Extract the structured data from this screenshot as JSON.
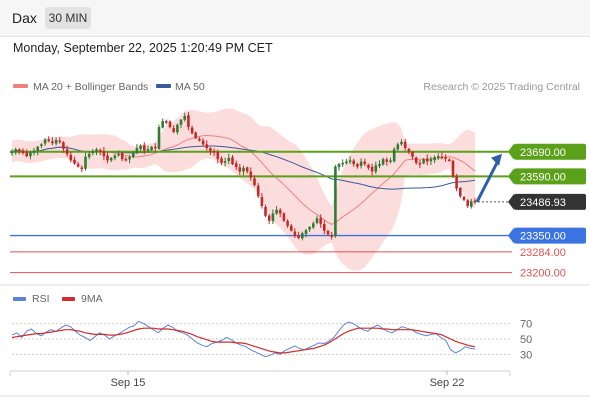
{
  "header": {
    "symbol": "Dax",
    "timeframe": "30 MIN",
    "timestamp": "Monday, September 22, 2025 1:20:49 PM CET"
  },
  "legend": {
    "ma20": "MA 20 + Bollinger Bands",
    "ma50": "MA 50",
    "rsi": "RSI",
    "rsi_ma": "9MA",
    "credit": "Research © 2025 Trading Central"
  },
  "colors": {
    "up": "#2e7d32",
    "down": "#c62828",
    "bollinger_fill": "#fbd1d1",
    "ma20": "#f08080",
    "ma50": "#3b5b9a",
    "resistance": "#5aa018",
    "support_blue": "#3b73e0",
    "support_red": "#e05050",
    "price_tag": "#333333",
    "arrow": "#2f5fa8",
    "rsi_line": "#5b84d6",
    "rsi_ma": "#d22b2b"
  },
  "chart_data": [
    {
      "type": "candlestick",
      "title": "Dax",
      "timeframe": "30 MIN",
      "x_ticks": [
        "Sep 15",
        "Sep 22"
      ],
      "y_range": [
        23170,
        23900
      ],
      "levels": [
        {
          "label": "23690.00",
          "value": 23690,
          "kind": "resistance"
        },
        {
          "label": "23590.00",
          "value": 23590,
          "kind": "resistance"
        },
        {
          "label": "23486.93",
          "value": 23486.93,
          "kind": "last-price"
        },
        {
          "label": "23350.00",
          "value": 23350,
          "kind": "support"
        },
        {
          "label": "23284.00",
          "value": 23284,
          "kind": "support"
        },
        {
          "label": "23200.00",
          "value": 23200,
          "kind": "support"
        }
      ],
      "last_price": 23486.93,
      "forecast_arrow": {
        "from": 23486.93,
        "to": 23690
      },
      "series": [
        {
          "name": "MA 20 + Bollinger Bands"
        },
        {
          "name": "MA 50"
        }
      ],
      "close_path": [
        23690,
        23700,
        23695,
        23685,
        23672,
        23688,
        23695,
        23710,
        23720,
        23740,
        23735,
        23725,
        23738,
        23730,
        23702,
        23680,
        23655,
        23642,
        23630,
        23620,
        23670,
        23682,
        23692,
        23700,
        23690,
        23672,
        23655,
        23665,
        23675,
        23682,
        23660,
        23655,
        23668,
        23685,
        23705,
        23715,
        23695,
        23700,
        23710,
        23705,
        23790,
        23815,
        23810,
        23790,
        23770,
        23800,
        23820,
        23835,
        23790,
        23765,
        23745,
        23735,
        23720,
        23705,
        23692,
        23688,
        23660,
        23645,
        23652,
        23665,
        23640,
        23628,
        23610,
        23625,
        23610,
        23585,
        23555,
        23510,
        23470,
        23430,
        23410,
        23440,
        23455,
        23440,
        23410,
        23390,
        23370,
        23350,
        23340,
        23360,
        23372,
        23385,
        23400,
        23420,
        23398,
        23370,
        23355,
        23345,
        23630,
        23640,
        23645,
        23650,
        23655,
        23640,
        23630,
        23650,
        23640,
        23625,
        23610,
        23635,
        23640,
        23660,
        23650,
        23655,
        23700,
        23720,
        23730,
        23705,
        23690,
        23670,
        23645,
        23640,
        23660,
        23650,
        23660,
        23668,
        23672,
        23670,
        23662,
        23655,
        23590,
        23540,
        23510,
        23495,
        23470,
        23490,
        23486.93
      ]
    },
    {
      "type": "line",
      "title": "RSI",
      "y_ticks": [
        70,
        50,
        30
      ],
      "series": [
        {
          "name": "RSI",
          "values": [
            55,
            58,
            52,
            60,
            63,
            57,
            54,
            59,
            62,
            60,
            64,
            68,
            66,
            60,
            55,
            52,
            48,
            53,
            58,
            55,
            50,
            54,
            57,
            61,
            65,
            67,
            73,
            70,
            66,
            62,
            58,
            64,
            68,
            65,
            60,
            58,
            55,
            50,
            45,
            42,
            40,
            44,
            46,
            48,
            52,
            49,
            45,
            42,
            40,
            36,
            33,
            30,
            27,
            29,
            32,
            30,
            35,
            38,
            41,
            38,
            36,
            39,
            42,
            45,
            44,
            47,
            52,
            60,
            68,
            72,
            70,
            66,
            62,
            60,
            65,
            68,
            64,
            60,
            58,
            62,
            66,
            64,
            62,
            58,
            56,
            54,
            56,
            57,
            52,
            48,
            36,
            32,
            35,
            40,
            38,
            37
          ]
        },
        {
          "name": "9MA",
          "values": [
            52,
            53,
            54,
            55,
            56,
            57,
            57,
            58,
            59,
            60,
            61,
            62,
            62,
            61,
            60,
            58,
            57,
            56,
            56,
            56,
            55,
            55,
            56,
            57,
            59,
            61,
            63,
            64,
            64,
            64,
            63,
            63,
            63,
            62,
            61,
            60,
            58,
            56,
            53,
            51,
            49,
            47,
            46,
            46,
            46,
            46,
            45,
            45,
            44,
            42,
            40,
            38,
            36,
            34,
            33,
            32,
            32,
            33,
            34,
            35,
            36,
            37,
            38,
            40,
            42,
            45,
            49,
            53,
            57,
            60,
            62,
            64,
            64,
            64,
            64,
            64,
            63,
            63,
            62,
            62,
            62,
            62,
            62,
            61,
            60,
            59,
            58,
            57,
            56,
            53,
            50,
            47,
            45,
            43,
            41,
            40
          ]
        }
      ]
    }
  ]
}
